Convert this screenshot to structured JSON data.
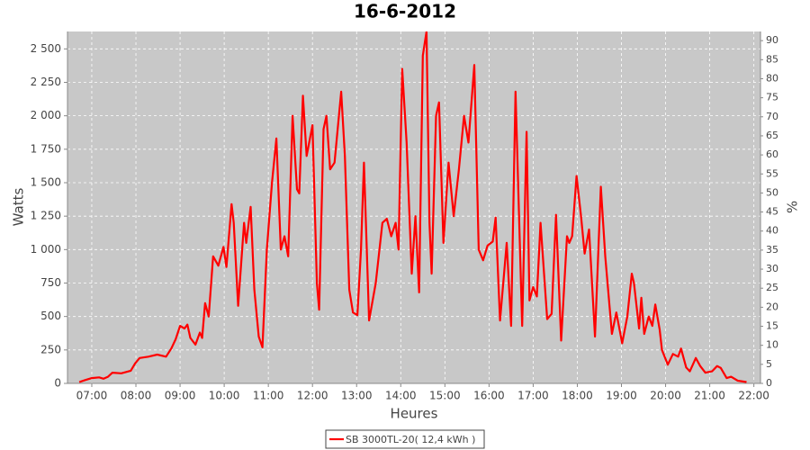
{
  "chart_data": {
    "type": "line",
    "title": "16-6-2012",
    "x_label": "Heures",
    "y_label": "Watts",
    "y2_label": "%",
    "xlim": [
      "06:27",
      "22:09"
    ],
    "xticks": [
      "07:00",
      "08:00",
      "09:00",
      "10:00",
      "11:00",
      "12:00",
      "13:00",
      "14:00",
      "15:00",
      "16:00",
      "17:00",
      "18:00",
      "19:00",
      "20:00",
      "21:00",
      "22:00"
    ],
    "ylim": [
      0,
      2630
    ],
    "yticks": [
      0,
      250,
      500,
      750,
      {
        "value": 1000,
        "label": "1 000"
      },
      {
        "value": 1250,
        "label": "1 250"
      },
      {
        "value": 1500,
        "label": "1 500"
      },
      {
        "value": 1750,
        "label": "1 750"
      },
      {
        "value": 2000,
        "label": "2 000"
      },
      {
        "value": 2250,
        "label": "2 250"
      },
      {
        "value": 2500,
        "label": "2 500"
      }
    ],
    "y2lim": [
      0,
      92.4
    ],
    "y2ticks": [
      0,
      5,
      10,
      15,
      20,
      25,
      30,
      35,
      40,
      45,
      50,
      55,
      60,
      65,
      70,
      75,
      80,
      85,
      90
    ],
    "grid": true,
    "plot_background": "#c8c8c8",
    "legend_position": "bottom",
    "x": [
      "06:43",
      "06:51",
      "07:00",
      "07:10",
      "07:16",
      "07:22",
      "07:28",
      "07:40",
      "07:53",
      "07:59",
      "08:05",
      "08:17",
      "08:29",
      "08:41",
      "08:48",
      "08:54",
      "09:00",
      "09:06",
      "09:10",
      "09:14",
      "09:21",
      "09:27",
      "09:30",
      "09:34",
      "09:39",
      "09:45",
      "09:52",
      "09:59",
      "10:03",
      "10:10",
      "10:13",
      "10:19",
      "10:27",
      "10:30",
      "10:36",
      "10:41",
      "10:47",
      "10:52",
      "10:58",
      "11:05",
      "11:11",
      "11:17",
      "11:22",
      "11:27",
      "11:33",
      "11:39",
      "11:42",
      "11:47",
      "11:52",
      "12:00",
      "12:06",
      "12:09",
      "12:15",
      "12:19",
      "12:24",
      "12:30",
      "12:39",
      "12:44",
      "12:50",
      "12:55",
      "13:01",
      "13:06",
      "13:10",
      "13:17",
      "13:26",
      "13:35",
      "13:41",
      "13:47",
      "13:53",
      "13:57",
      "14:02",
      "14:08",
      "14:15",
      "14:20",
      "14:25",
      "14:30",
      "14:35",
      "14:39",
      "14:42",
      "14:48",
      "14:52",
      "14:58",
      "15:05",
      "15:12",
      "15:19",
      "15:26",
      "15:32",
      "15:40",
      "15:46",
      "15:52",
      "15:58",
      "16:05",
      "16:09",
      "16:15",
      "16:24",
      "16:30",
      "16:36",
      "16:45",
      "16:51",
      "16:55",
      "17:00",
      "17:05",
      "17:10",
      "17:19",
      "17:25",
      "17:31",
      "17:38",
      "17:46",
      "17:49",
      "17:53",
      "17:59",
      "18:05",
      "18:10",
      "18:16",
      "18:24",
      "18:32",
      "18:38",
      "18:47",
      "18:53",
      "19:01",
      "19:08",
      "19:14",
      "19:17",
      "19:24",
      "19:27",
      "19:31",
      "19:37",
      "19:42",
      "19:46",
      "19:52",
      "19:55",
      "20:03",
      "20:10",
      "20:17",
      "20:21",
      "20:28",
      "20:33",
      "20:41",
      "20:47",
      "20:54",
      "21:03",
      "21:10",
      "21:15",
      "21:23",
      "21:29",
      "21:38",
      "21:50"
    ],
    "series": [
      {
        "name": "SB 3000TL-20( 12,4 kWh )",
        "color": "#ff0000",
        "values": [
          10,
          25,
          40,
          45,
          35,
          50,
          80,
          75,
          95,
          150,
          190,
          200,
          215,
          200,
          260,
          330,
          430,
          410,
          440,
          340,
          290,
          380,
          340,
          600,
          500,
          950,
          880,
          1020,
          870,
          1340,
          1200,
          580,
          1200,
          1050,
          1320,
          700,
          350,
          270,
          1000,
          1500,
          1830,
          1000,
          1100,
          950,
          2000,
          1450,
          1420,
          2150,
          1700,
          1930,
          750,
          550,
          1900,
          2000,
          1600,
          1650,
          2180,
          1700,
          700,
          530,
          510,
          1000,
          1650,
          470,
          750,
          1200,
          1230,
          1100,
          1200,
          1000,
          2350,
          1800,
          820,
          1250,
          680,
          2450,
          2630,
          1200,
          820,
          2000,
          2100,
          1050,
          1650,
          1250,
          1600,
          2000,
          1800,
          2380,
          1000,
          920,
          1030,
          1060,
          1240,
          470,
          1050,
          430,
          2180,
          430,
          1880,
          620,
          720,
          650,
          1200,
          480,
          520,
          1260,
          320,
          1100,
          1050,
          1100,
          1550,
          1250,
          970,
          1150,
          350,
          1470,
          950,
          370,
          530,
          300,
          500,
          820,
          750,
          410,
          640,
          370,
          500,
          430,
          590,
          400,
          250,
          140,
          220,
          200,
          260,
          120,
          90,
          190,
          130,
          80,
          90,
          130,
          115,
          40,
          50,
          20,
          10
        ]
      }
    ]
  }
}
